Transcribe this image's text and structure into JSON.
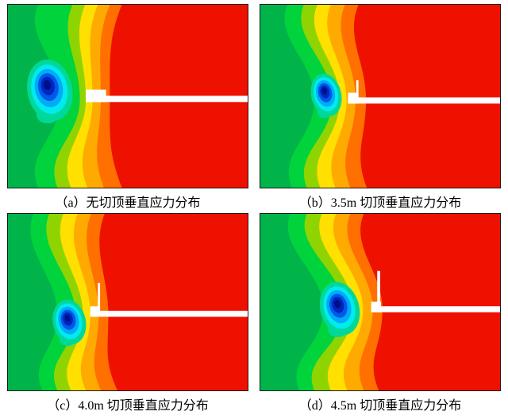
{
  "figure": {
    "panels": [
      {
        "id": "a",
        "caption": "（a）无切顶垂直应力分布"
      },
      {
        "id": "b",
        "caption": "（b）3.5m 切顶垂直应力分布"
      },
      {
        "id": "c",
        "caption": "（c）4.0m 切顶垂直应力分布"
      },
      {
        "id": "d",
        "caption": "（d）4.5m 切顶垂直应力分布"
      }
    ]
  },
  "chart_data": {
    "type": "heatmap",
    "subtype": "fem-vertical-stress-contour",
    "description": "2x2 grid of vertical stress contour plots around a mine roadway (white horizontal excavation) for different roof-cutting heights; red = high stress concentration zone, blue = stress-relief zone left of the roadway, green = background stress",
    "legend": "none",
    "axes": "none",
    "palette_high_to_low": [
      "#ee1100",
      "#ff7000",
      "#ffaa00",
      "#ffe000",
      "#8fd400",
      "#00d33c",
      "#00b44a",
      "#00d89a",
      "#00eaf0",
      "#00aaf8",
      "#0058e8",
      "#0026c0",
      "#000e86"
    ],
    "panels": [
      {
        "label": "（a）",
        "title": "无切顶垂直应力分布",
        "cut_height_m": null
      },
      {
        "label": "（b）",
        "title": "3.5m 切顶垂直应力分布",
        "cut_height_m": 3.5
      },
      {
        "label": "（c）",
        "title": "4.0m 切顶垂直应力分布",
        "cut_height_m": 4.0
      },
      {
        "label": "（d）",
        "title": "4.5m 切顶垂直应力分布",
        "cut_height_m": 4.5
      }
    ]
  }
}
